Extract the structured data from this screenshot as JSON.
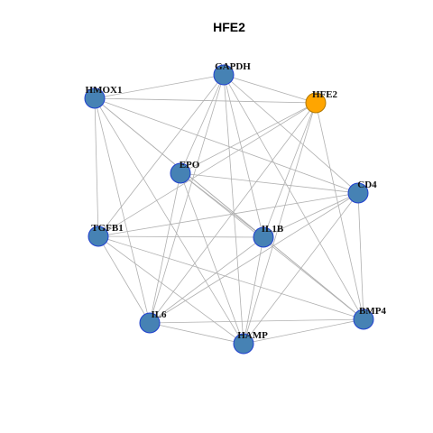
{
  "header": {
    "title": "HFE2"
  },
  "nodes": [
    {
      "label": "GAPDH"
    },
    {
      "label": "HMOX1"
    },
    {
      "label": "HFE2"
    },
    {
      "label": "EPO"
    },
    {
      "label": "CD4"
    },
    {
      "label": "TGFB1"
    },
    {
      "label": "IL1B"
    },
    {
      "label": "IL6"
    },
    {
      "label": "BMP4"
    },
    {
      "label": "HAMP"
    }
  ]
}
